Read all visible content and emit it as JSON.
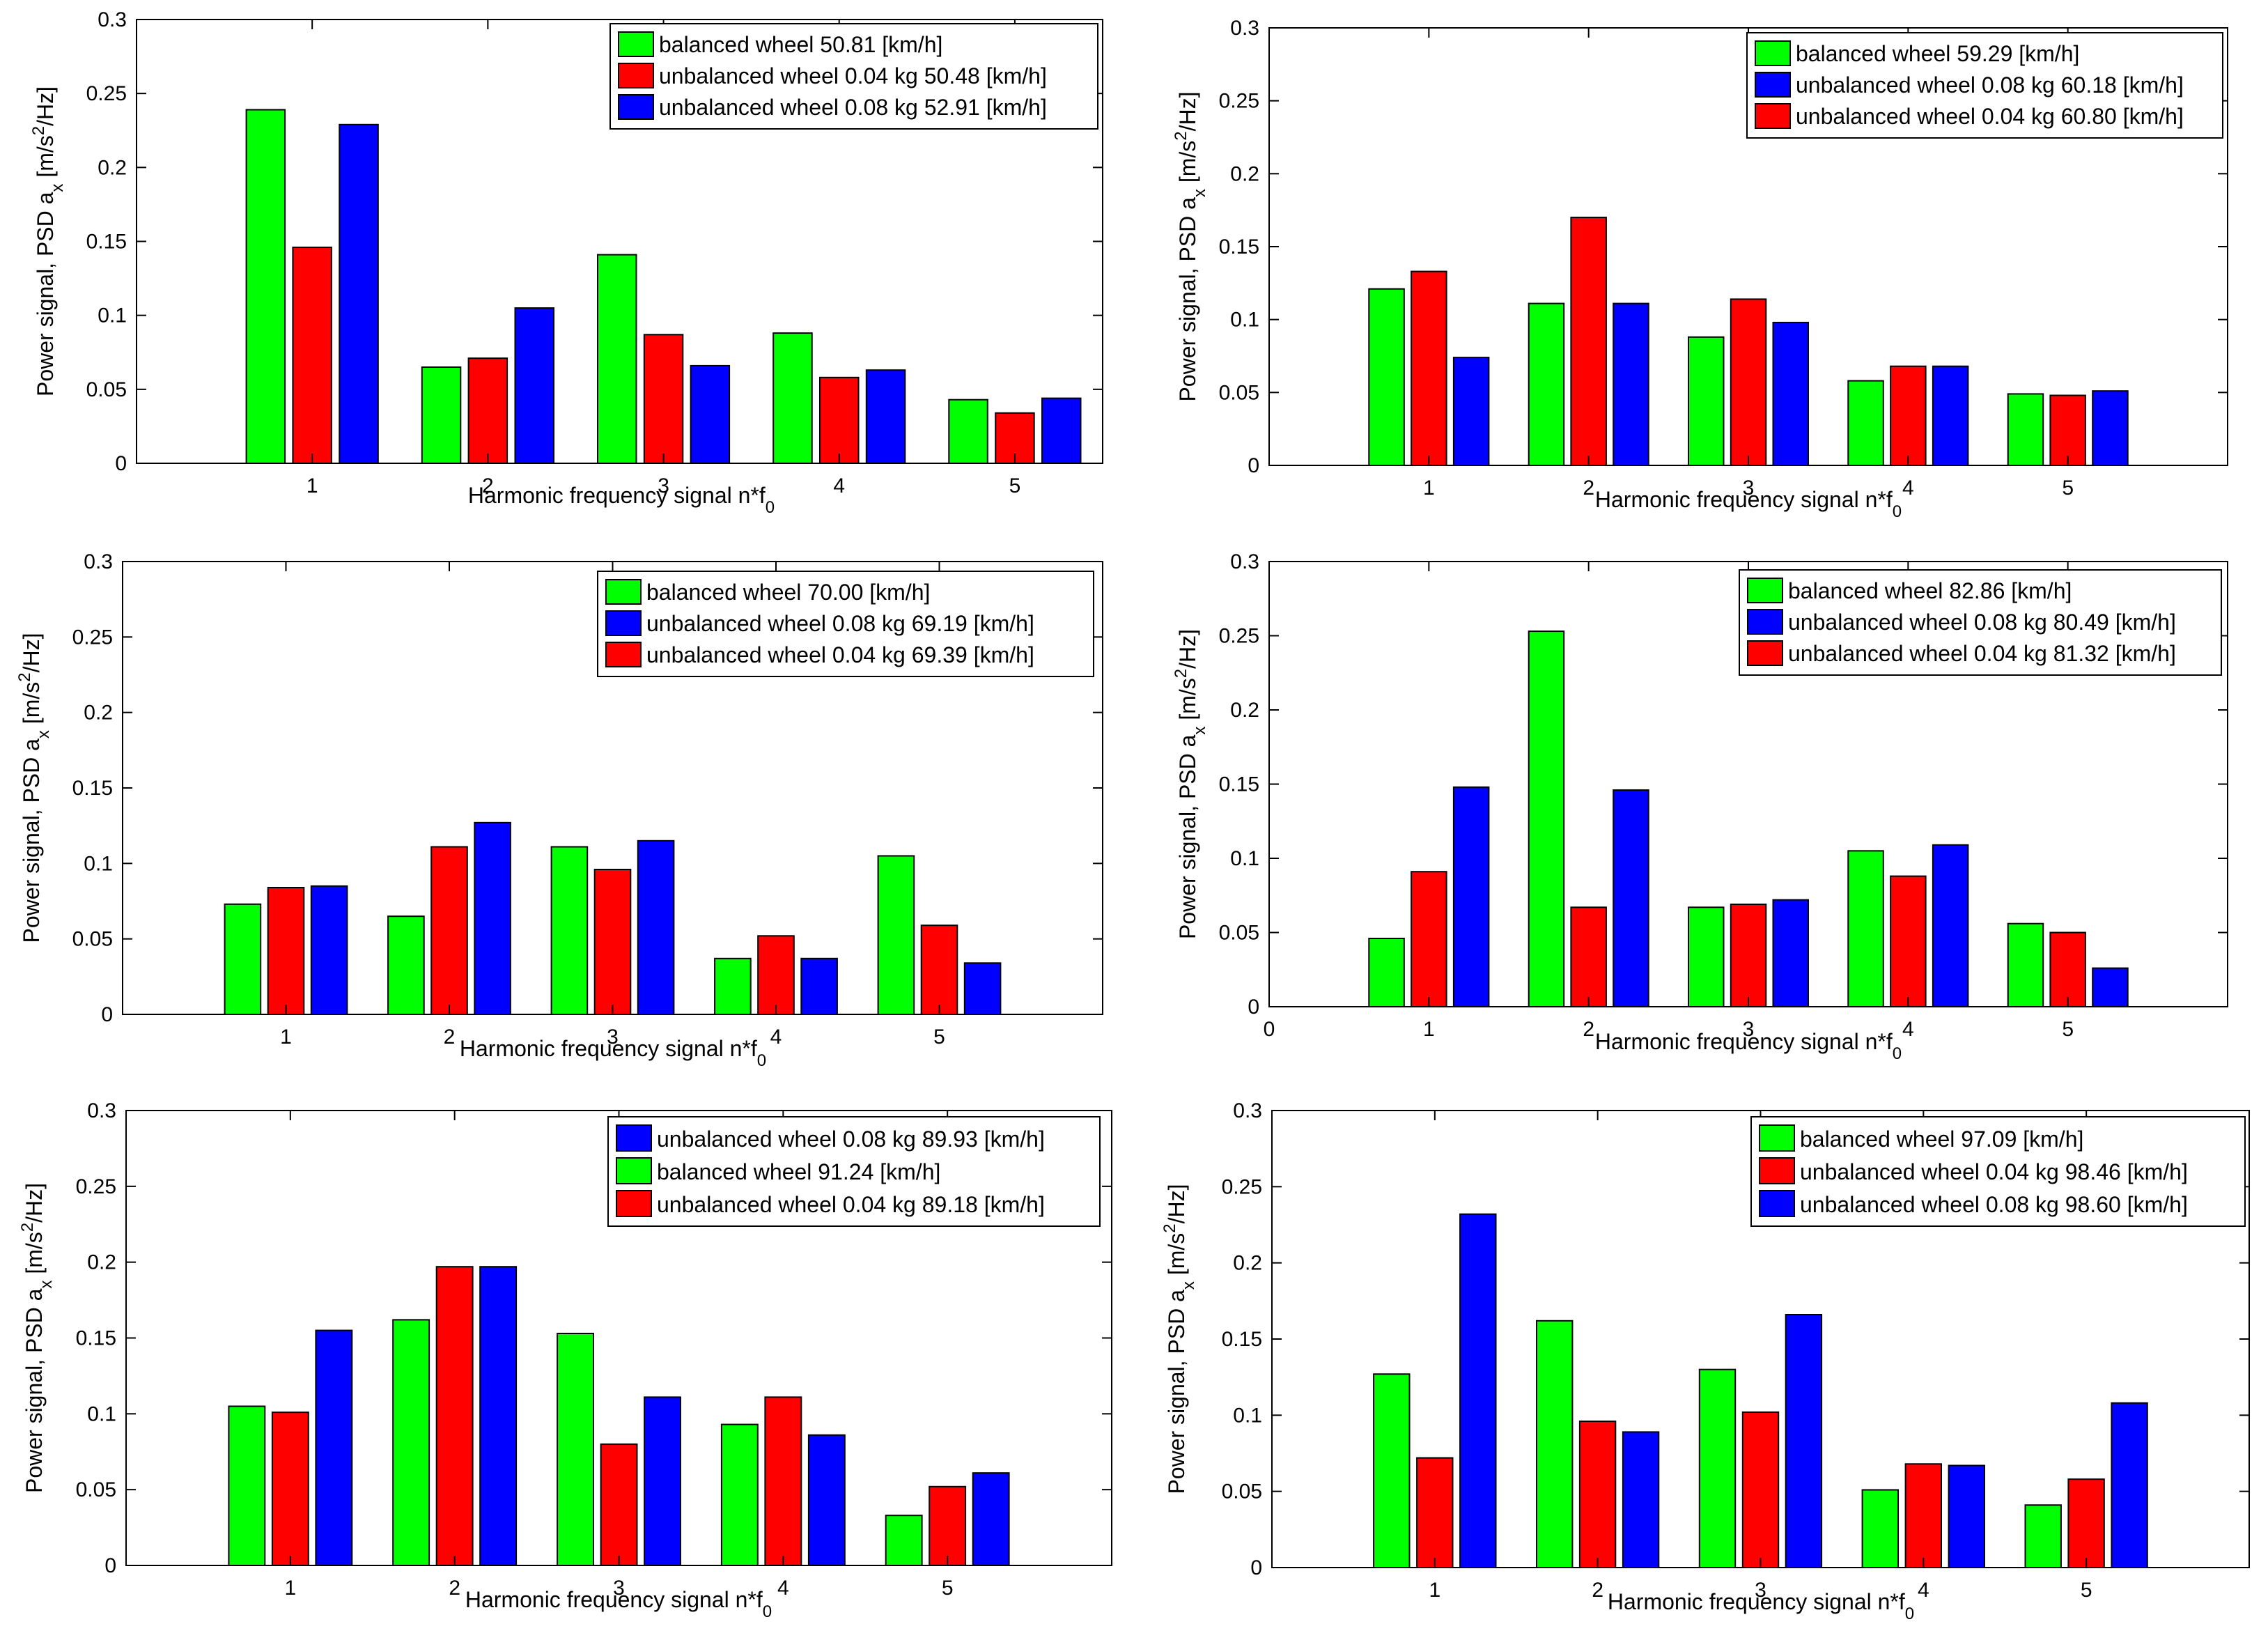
{
  "colors": {
    "balanced": "#00ff00",
    "unbalanced_004": "#ff0000",
    "unbalanced_008": "#0000ff"
  },
  "chart_data": [
    {
      "type": "bar",
      "categories": [
        "1",
        "2",
        "3",
        "4",
        "5"
      ],
      "xlabel": "Harmonic frequency signal n*f0",
      "ylabel": "Power signal, PSD ax [m/s2/Hz]",
      "ylim": [
        0,
        0.3
      ],
      "yticks": [
        "0",
        "0.05",
        "0.1",
        "0.15",
        "0.2",
        "0.25",
        "0.3"
      ],
      "grid": false,
      "legend": "top-right",
      "series": [
        {
          "name": "balanced wheel 50.81 [km/h]",
          "color": "#00ff00",
          "values": [
            0.239,
            0.065,
            0.141,
            0.088,
            0.043
          ]
        },
        {
          "name": "unbalanced wheel 0.04 kg 50.48 [km/h]",
          "color": "#ff0000",
          "values": [
            0.146,
            0.071,
            0.087,
            0.058,
            0.034
          ]
        },
        {
          "name": "unbalanced wheel 0.08 kg 52.91 [km/h]",
          "color": "#0000ff",
          "values": [
            0.229,
            0.105,
            0.066,
            0.063,
            0.044
          ]
        }
      ]
    },
    {
      "type": "bar",
      "categories": [
        "1",
        "2",
        "3",
        "4",
        "5"
      ],
      "xlabel": "Harmonic frequency signal n*f0",
      "ylabel": "Power signal, PSD ax [m/s2/Hz]",
      "ylim": [
        0,
        0.3
      ],
      "yticks": [
        "0",
        "0.05",
        "0.1",
        "0.15",
        "0.2",
        "0.25",
        "0.3"
      ],
      "grid": false,
      "legend": "top-right",
      "series": [
        {
          "name": "balanced wheel 59.29 [km/h]",
          "color": "#00ff00",
          "values": [
            0.121,
            0.111,
            0.088,
            0.058,
            0.049
          ]
        },
        {
          "name": "unbalanced wheel 0.08 kg 60.18 [km/h]",
          "color": "#0000ff",
          "values": [
            0.074,
            0.111,
            0.098,
            0.068,
            0.051
          ]
        },
        {
          "name": "unbalanced wheel 0.04 kg 60.80 [km/h]",
          "color": "#ff0000",
          "values": [
            0.133,
            0.17,
            0.114,
            0.068,
            0.048
          ]
        }
      ],
      "bar_order": [
        0,
        2,
        1
      ]
    },
    {
      "type": "bar",
      "categories": [
        "1",
        "2",
        "3",
        "4",
        "5"
      ],
      "xlabel": "Harmonic frequency signal n*f0",
      "ylabel": "Power signal, PSD ax [m/s2/Hz]",
      "ylim": [
        0,
        0.3
      ],
      "yticks": [
        "0",
        "0.05",
        "0.1",
        "0.15",
        "0.2",
        "0.25",
        "0.3"
      ],
      "grid": false,
      "legend": "top-right",
      "series": [
        {
          "name": "balanced wheel 70.00 [km/h]",
          "color": "#00ff00",
          "values": [
            0.073,
            0.065,
            0.111,
            0.037,
            0.105
          ]
        },
        {
          "name": "unbalanced wheel 0.08 kg 69.19 [km/h]",
          "color": "#0000ff",
          "values": [
            0.085,
            0.127,
            0.115,
            0.037,
            0.034
          ]
        },
        {
          "name": "unbalanced wheel 0.04 kg 69.39 [km/h]",
          "color": "#ff0000",
          "values": [
            0.084,
            0.111,
            0.096,
            0.052,
            0.059
          ]
        }
      ],
      "bar_order": [
        0,
        2,
        1
      ]
    },
    {
      "type": "bar",
      "categories": [
        "1",
        "2",
        "3",
        "4",
        "5"
      ],
      "x_origin_label": "0",
      "xlabel": "Harmonic frequency signal n*f0",
      "ylabel": "Power signal, PSD ax [m/s2/Hz]",
      "ylim": [
        0,
        0.3
      ],
      "yticks": [
        "0",
        "0.05",
        "0.1",
        "0.15",
        "0.2",
        "0.25",
        "0.3"
      ],
      "grid": false,
      "legend": "top-right",
      "series": [
        {
          "name": "balanced wheel 82.86 [km/h]",
          "color": "#00ff00",
          "values": [
            0.046,
            0.253,
            0.067,
            0.105,
            0.056
          ]
        },
        {
          "name": "unbalanced wheel 0.08 kg 80.49 [km/h]",
          "color": "#0000ff",
          "values": [
            0.148,
            0.146,
            0.072,
            0.109,
            0.026
          ]
        },
        {
          "name": "unbalanced wheel 0.04 kg 81.32 [km/h]",
          "color": "#ff0000",
          "values": [
            0.091,
            0.067,
            0.069,
            0.088,
            0.05
          ]
        }
      ],
      "bar_order": [
        0,
        2,
        1
      ]
    },
    {
      "type": "bar",
      "categories": [
        "1",
        "2",
        "3",
        "4",
        "5"
      ],
      "xlabel": "Harmonic frequency signal n*f0",
      "ylabel": "Power signal, PSD ax [m/s2/Hz]",
      "ylim": [
        0,
        0.3
      ],
      "yticks": [
        "0",
        "0.05",
        "0.1",
        "0.15",
        "0.2",
        "0.25",
        "0.3"
      ],
      "grid": false,
      "legend": "top-right",
      "series": [
        {
          "name": "unbalanced wheel 0.08 kg 89.93 [km/h]",
          "color": "#0000ff",
          "values": [
            0.155,
            0.197,
            0.111,
            0.086,
            0.061
          ]
        },
        {
          "name": "balanced wheel 91.24 [km/h]",
          "color": "#00ff00",
          "values": [
            0.105,
            0.162,
            0.153,
            0.093,
            0.033
          ]
        },
        {
          "name": "unbalanced wheel 0.04 kg 89.18 [km/h]",
          "color": "#ff0000",
          "values": [
            0.101,
            0.197,
            0.08,
            0.111,
            0.052
          ]
        }
      ],
      "bar_order": [
        1,
        2,
        0
      ]
    },
    {
      "type": "bar",
      "categories": [
        "1",
        "2",
        "3",
        "4",
        "5"
      ],
      "xlabel": "Harmonic frequency signal n*f0",
      "ylabel": "Power signal, PSD ax [m/s2/Hz]",
      "ylim": [
        0,
        0.3
      ],
      "yticks": [
        "0",
        "0.05",
        "0.1",
        "0.15",
        "0.2",
        "0.25",
        "0.3"
      ],
      "grid": false,
      "legend": "top-right",
      "series": [
        {
          "name": "balanced wheel 97.09 [km/h]",
          "color": "#00ff00",
          "values": [
            0.127,
            0.162,
            0.13,
            0.051,
            0.041
          ]
        },
        {
          "name": "unbalanced wheel 0.04 kg 98.46 [km/h]",
          "color": "#ff0000",
          "values": [
            0.072,
            0.096,
            0.102,
            0.068,
            0.058
          ]
        },
        {
          "name": "unbalanced wheel 0.08 kg 98.60 [km/h]",
          "color": "#0000ff",
          "values": [
            0.232,
            0.089,
            0.166,
            0.067,
            0.108
          ]
        }
      ]
    }
  ]
}
